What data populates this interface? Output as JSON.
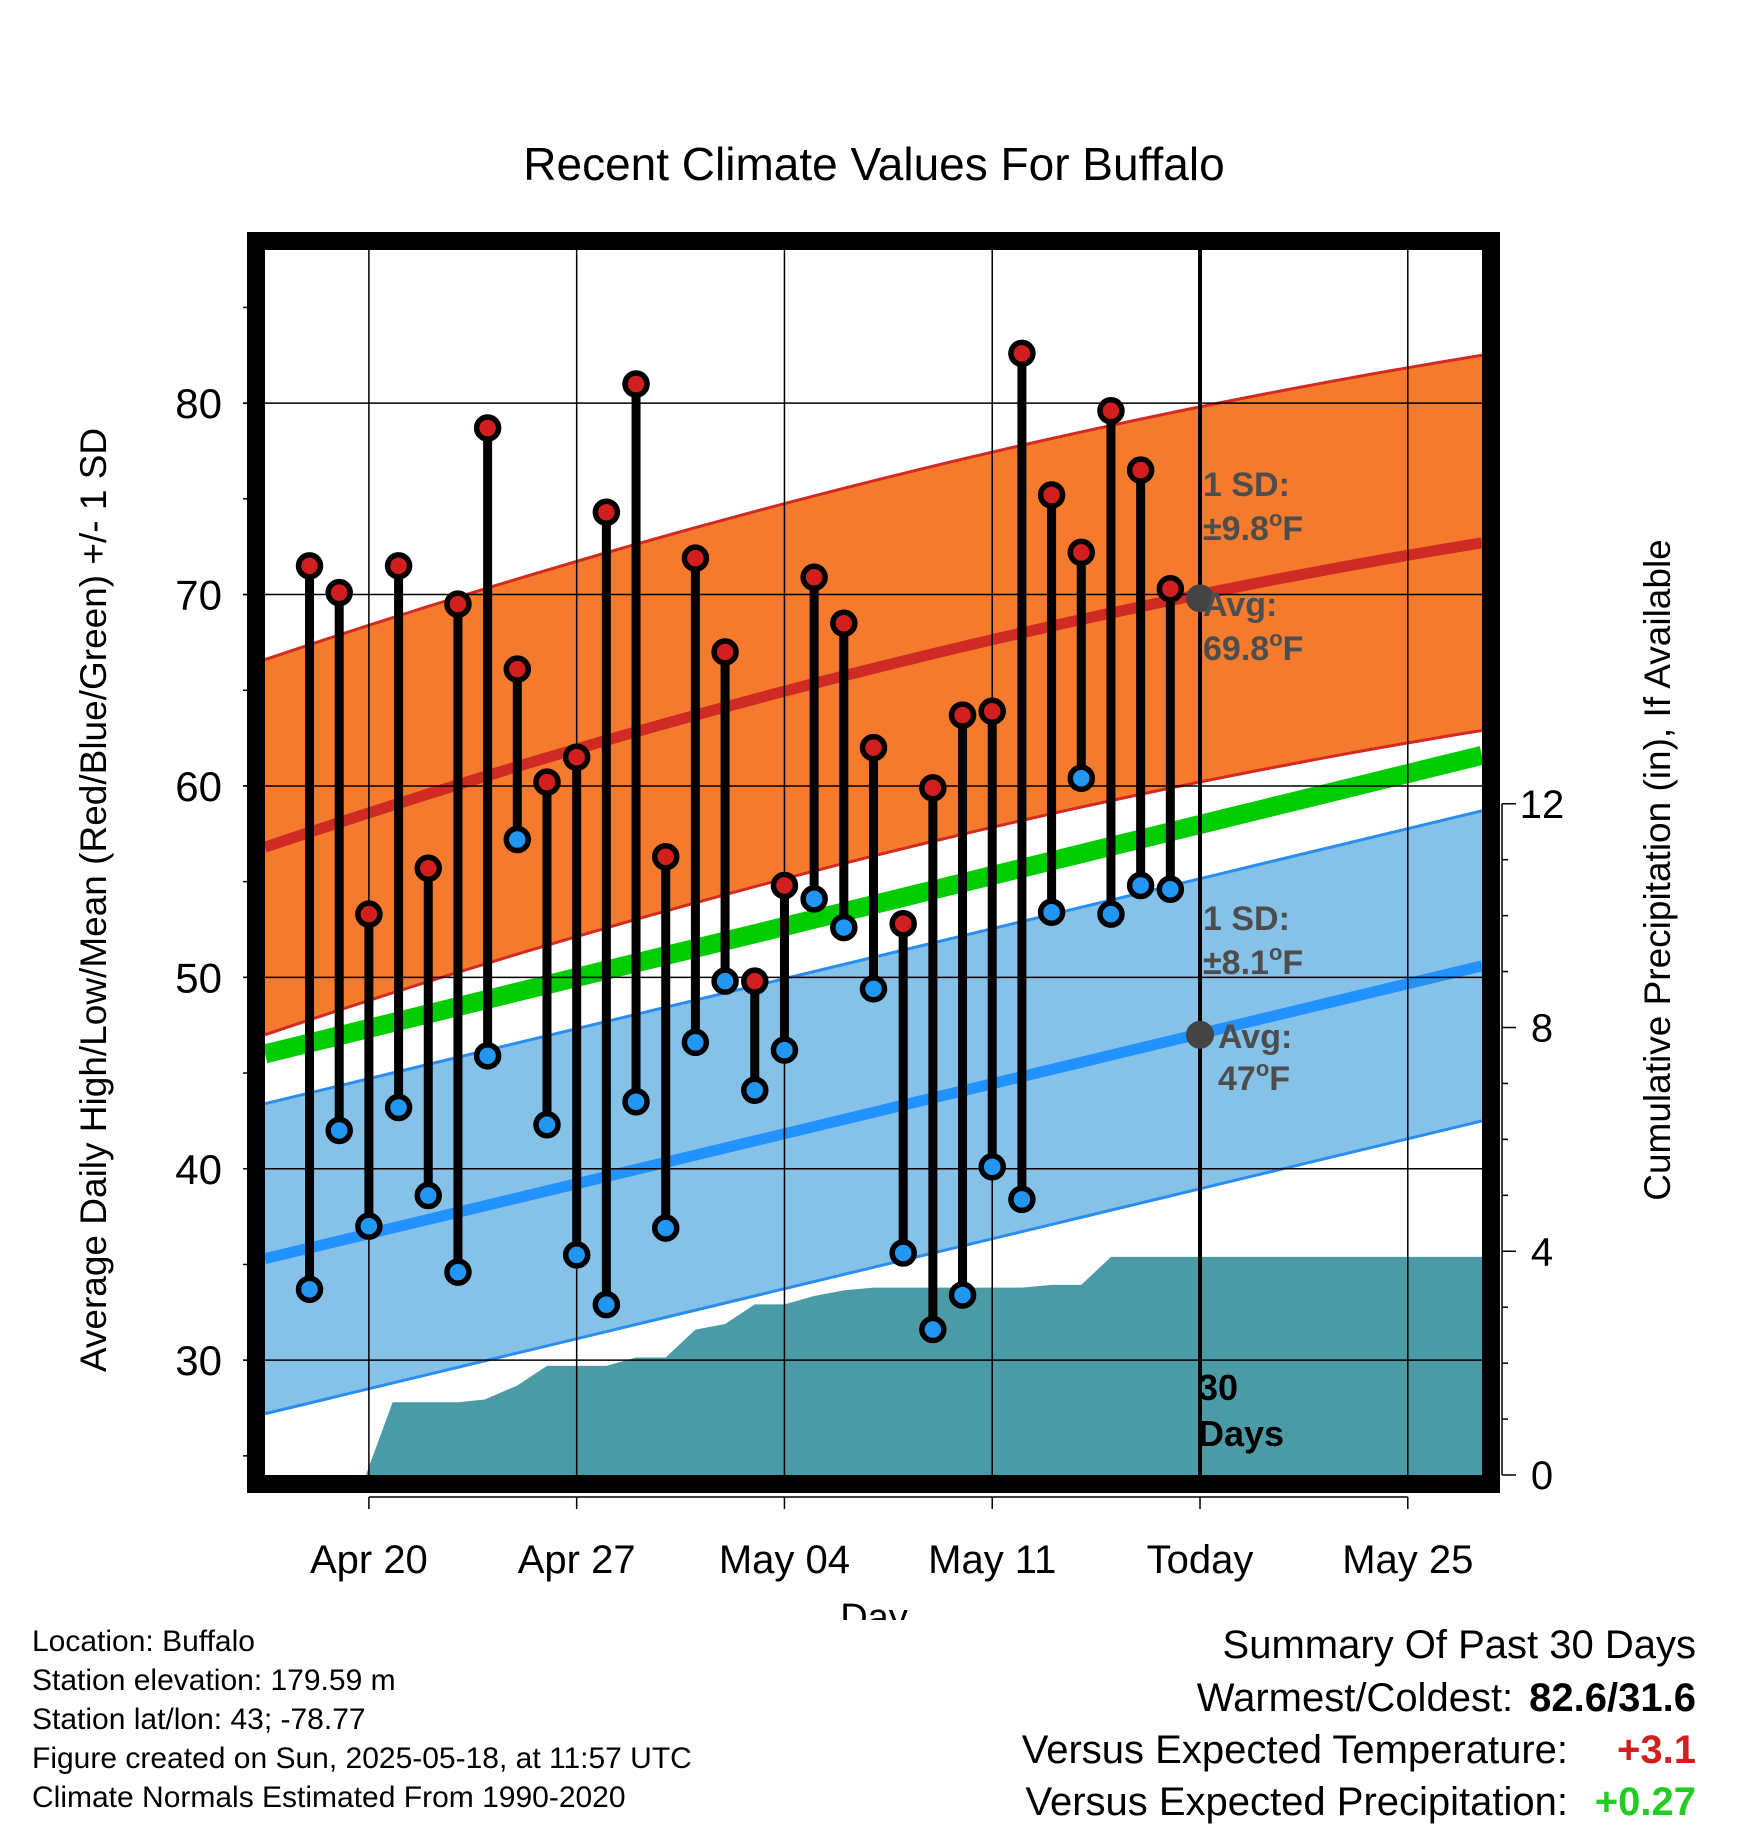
{
  "chart_data": {
    "type": "line",
    "title": "Recent Climate Values For Buffalo",
    "xlabel": "Day",
    "ylabel": "Average Daily High/Low/Mean (Red/Blue/Green) +/- 1 SD",
    "y2label": "Cumulative Precipitation (in), If Available",
    "x_tick_labels": [
      "Apr 20",
      "Apr 27",
      "May 04",
      "May 11",
      "Today",
      "May 25"
    ],
    "x_tick_days": [
      -28,
      -21,
      -14,
      -7,
      0,
      7
    ],
    "x_range_days": [
      -31.5,
      9.5
    ],
    "ylim": [
      24,
      88
    ],
    "y_ticks": [
      30,
      40,
      50,
      60,
      70,
      80
    ],
    "y2lim": [
      0,
      21.9
    ],
    "y2_ticks": [
      0,
      4,
      8,
      12
    ],
    "grid": true,
    "today_label": "Today",
    "window_label_line1": "30",
    "window_label_line2": "Days",
    "normals": {
      "day": [
        -31.5,
        9.5
      ],
      "high_mean": [
        56.8,
        72.7
      ],
      "high_sd": 9.8,
      "low_mean": [
        35.3,
        50.6
      ],
      "low_sd": 8.1,
      "mean": [
        46.0,
        61.6
      ]
    },
    "high_annotation": {
      "sd_label": "1 SD:",
      "sd_value": "±9.8",
      "avg_label": "Avg:",
      "avg_value": "69.8",
      "unit": "F",
      "today_value": 69.8
    },
    "low_annotation": {
      "sd_label": "1 SD:",
      "sd_value": "±8.1",
      "avg_label": "Avg:",
      "avg_value": "47",
      "unit": "F",
      "today_value": 47
    },
    "observations": {
      "day": [
        -30,
        -29,
        -28,
        -27,
        -26,
        -25,
        -24,
        -23,
        -22,
        -21,
        -20,
        -19,
        -18,
        -17,
        -16,
        -15,
        -14,
        -13,
        -12,
        -11,
        -10,
        -9,
        -8,
        -7,
        -6,
        -5,
        -4,
        -3,
        -2,
        -1
      ],
      "high": [
        71.5,
        70.1,
        53.3,
        71.5,
        55.7,
        69.5,
        78.7,
        66.1,
        60.2,
        61.5,
        74.3,
        81.0,
        56.3,
        71.9,
        67.0,
        49.8,
        54.8,
        70.9,
        68.5,
        62.0,
        52.8,
        59.9,
        63.7,
        63.9,
        82.6,
        75.2,
        72.2,
        79.6,
        76.5,
        70.3
      ],
      "low": [
        33.7,
        42.0,
        37.0,
        43.2,
        38.6,
        34.6,
        45.9,
        57.2,
        42.3,
        35.5,
        32.9,
        43.5,
        36.9,
        46.6,
        49.8,
        44.1,
        46.2,
        54.1,
        52.6,
        49.4,
        35.6,
        31.6,
        33.4,
        40.1,
        38.4,
        53.4,
        60.4,
        53.3,
        54.8,
        54.6
      ]
    },
    "precipitation": {
      "day": [
        -28.1,
        -27.2,
        -26,
        -25,
        -24.1,
        -23,
        -22,
        -21,
        -20,
        -19,
        -18,
        -17,
        -16,
        -15,
        -14,
        -13,
        -12,
        -11,
        -10,
        -9,
        -8,
        -7,
        -6,
        -5,
        -4,
        -3,
        -2,
        -1,
        0,
        9.5
      ],
      "cumulative": [
        0,
        1.3,
        1.3,
        1.3,
        1.35,
        1.6,
        1.95,
        1.95,
        1.95,
        2.1,
        2.1,
        2.6,
        2.7,
        3.05,
        3.05,
        3.2,
        3.3,
        3.35,
        3.35,
        3.35,
        3.35,
        3.35,
        3.35,
        3.4,
        3.4,
        3.9,
        3.9,
        3.9,
        3.9,
        3.9
      ]
    },
    "colors": {
      "high_band": "#f47a2e",
      "high_mean_line": "#d02a25",
      "high_band_edge": "#d42a20",
      "low_band": "#86c1e8",
      "low_mean_line": "#2192ff",
      "low_band_edge": "#2a8ef0",
      "mean_line": "#00cc00",
      "precip": "#4a9ba5",
      "high_dot": "#d11f1f",
      "low_dot": "#2196f3",
      "annotation_text": "#4d4d4d",
      "warm_anomaly": "#d22020",
      "wet_anomaly": "#22cc22"
    }
  },
  "info": {
    "location": "Location: Buffalo",
    "elevation": "Station elevation: 179.59 m",
    "latlon": "Station lat/lon: 43; -78.77",
    "created": "Figure created on Sun, 2025-05-18, at 11:57 UTC",
    "normals": "Climate Normals Estimated From 1990-2020"
  },
  "summary": {
    "heading": "Summary Of Past 30 Days",
    "extremes_label": "Warmest/Coldest:",
    "extremes_value": "82.6/31.6",
    "temp_label": "Versus Expected Temperature:",
    "temp_value": "+3.1",
    "precip_label": "Versus Expected Precipitation:",
    "precip_value": "+0.27"
  }
}
